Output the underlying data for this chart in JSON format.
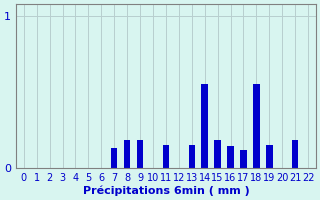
{
  "categories": [
    0,
    1,
    2,
    3,
    4,
    5,
    6,
    7,
    8,
    9,
    10,
    11,
    12,
    13,
    14,
    15,
    16,
    17,
    18,
    19,
    20,
    21,
    22
  ],
  "values": [
    0,
    0,
    0,
    0,
    0,
    0,
    0,
    0.13,
    0.18,
    0.18,
    0,
    0.15,
    0,
    0.15,
    0.55,
    0.18,
    0.14,
    0.12,
    0.55,
    0.15,
    0,
    0.18,
    0
  ],
  "bar_color": "#0000cc",
  "background_color": "#d8f5f0",
  "grid_color": "#b8cece",
  "xlabel": "Précipitations 6min ( mm )",
  "xlabel_color": "#0000cc",
  "ytick_labels": [
    "0",
    "1"
  ],
  "ytick_values": [
    0,
    1
  ],
  "ylim": [
    0,
    1.08
  ],
  "xlim": [
    -0.6,
    22.6
  ],
  "axis_color": "#808080",
  "tick_color": "#0000cc",
  "font_size_xlabel": 8,
  "font_size_ticks": 7
}
